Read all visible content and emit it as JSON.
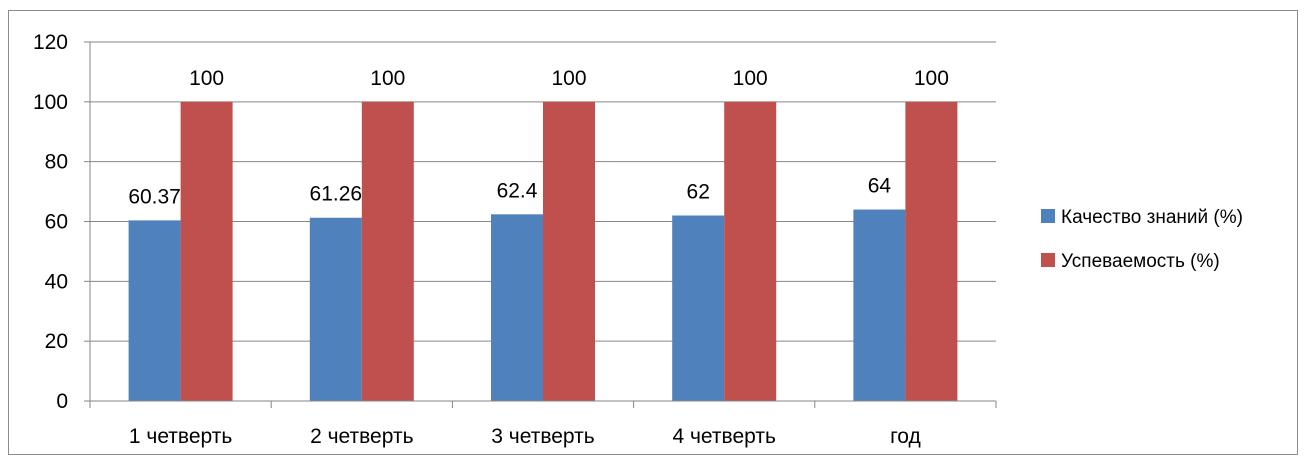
{
  "chart_data": {
    "type": "bar",
    "categories": [
      "1 четверть",
      "2 четверть",
      "3 четверть",
      "4 четверть",
      "год"
    ],
    "series": [
      {
        "name": "Качество знаний (%)",
        "values": [
          60.37,
          61.26,
          62.4,
          62,
          64
        ],
        "labels": [
          "60.37",
          "61.26",
          "62.4",
          "62",
          "64"
        ],
        "color": "#4f81bd"
      },
      {
        "name": "Успеваемость (%)",
        "values": [
          100,
          100,
          100,
          100,
          100
        ],
        "labels": [
          "100",
          "100",
          "100",
          "100",
          "100"
        ],
        "color": "#c0504d"
      }
    ],
    "y_ticks": [
      "0",
      "20",
      "40",
      "60",
      "80",
      "100",
      "120"
    ],
    "ylim": [
      0,
      120
    ],
    "grid": true,
    "legend_position": "right",
    "gridline_color": "#868686"
  }
}
